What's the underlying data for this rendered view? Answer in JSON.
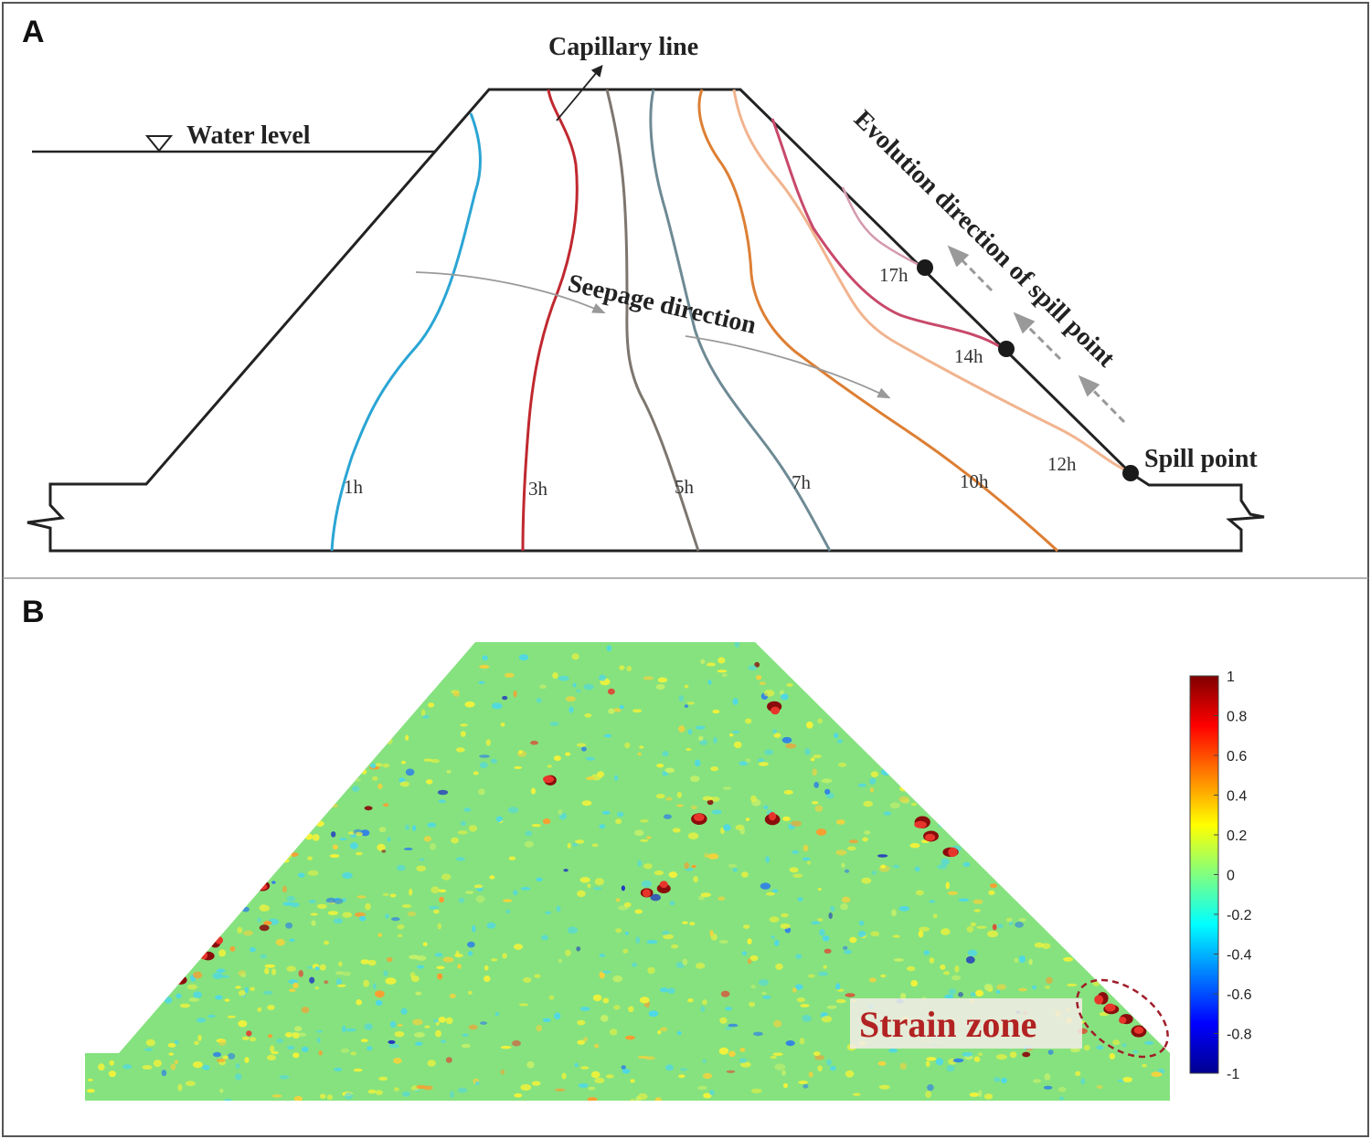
{
  "panel_a": {
    "letter": "A",
    "labels": {
      "capillary_line": "Capillary line",
      "water_level": "Water level",
      "seepage_direction": "Seepage direction",
      "evolution_direction": "Evolution direction of spill point",
      "spill_point": "Spill point"
    },
    "seepage_lines": [
      {
        "time": "1h",
        "color": "#2aa5d4"
      },
      {
        "time": "3h",
        "color": "#c0282f"
      },
      {
        "time": "5h",
        "color": "#7d766f"
      },
      {
        "time": "7h",
        "color": "#6e8a94"
      },
      {
        "time": "10h",
        "color": "#dd7f34"
      },
      {
        "time": "12h",
        "color": "#f1b48f"
      },
      {
        "time": "14h",
        "color": "#c8496a"
      },
      {
        "time": "17h",
        "color": "#d49aac"
      }
    ]
  },
  "panel_b": {
    "letter": "B",
    "strain_zone_label": "Strain zone",
    "colorbar": {
      "colors": [
        "#00008f",
        "#0000ff",
        "#0080ff",
        "#00ffff",
        "#80ff80",
        "#ffff00",
        "#ff8000",
        "#ff0000",
        "#800000"
      ],
      "min": -1,
      "max": 1,
      "ticks": [
        "1",
        "0.8",
        "0.6",
        "0.4",
        "0.2",
        "0",
        "-0.2",
        "-0.4",
        "-0.6",
        "-0.8",
        "-1"
      ]
    }
  }
}
